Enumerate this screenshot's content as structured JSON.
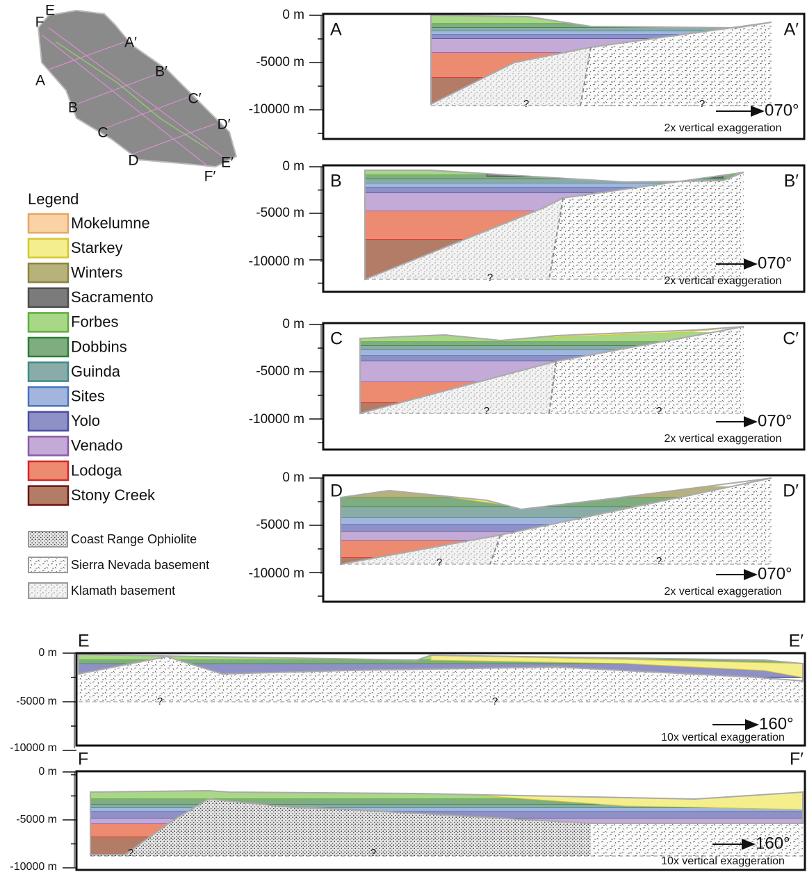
{
  "map": {
    "labels": [
      "E",
      "F",
      "A′",
      "A",
      "B′",
      "B",
      "C′",
      "C",
      "D′",
      "D",
      "E′",
      "F′"
    ]
  },
  "legend": {
    "title": "Legend",
    "items": [
      {
        "name": "Mokelumne",
        "color": "#f9d3a5",
        "edge": "#e9a466"
      },
      {
        "name": "Starkey",
        "color": "#f4ee8c",
        "edge": "#d6c630"
      },
      {
        "name": "Winters",
        "color": "#b7b27c",
        "edge": "#8a8540"
      },
      {
        "name": "Sacramento",
        "color": "#7b7b7b",
        "edge": "#4d4d4d"
      },
      {
        "name": "Forbes",
        "color": "#a8d887",
        "edge": "#5dae3a"
      },
      {
        "name": "Dobbins",
        "color": "#80ad80",
        "edge": "#2e7d3a"
      },
      {
        "name": "Guinda",
        "color": "#8aaca8",
        "edge": "#3f8a86"
      },
      {
        "name": "Sites",
        "color": "#a2b6dd",
        "edge": "#4a73c0"
      },
      {
        "name": "Yolo",
        "color": "#8f90c6",
        "edge": "#4a4fa0"
      },
      {
        "name": "Venado",
        "color": "#c4aad6",
        "edge": "#8a5aa8"
      },
      {
        "name": "Lodoga",
        "color": "#ec8b70",
        "edge": "#d8232a"
      },
      {
        "name": "Stony Creek",
        "color": "#b27c66",
        "edge": "#6e1414"
      },
      {
        "name": "Coast Range Ophiolite",
        "color": "#bbbbbb",
        "edge": "#999999"
      },
      {
        "name": "Sierra Nevada basement",
        "color": "#bbbbbb",
        "edge": "#999999"
      },
      {
        "name": "Klamath basement",
        "color": "#bbbbbb",
        "edge": "#999999"
      }
    ]
  },
  "sections": [
    {
      "start_label": "A",
      "end_label": "A′",
      "yticks": [
        "0 m",
        "-5000 m",
        "-10000 m"
      ],
      "direction": "070°",
      "exaggeration": "2x vertical exaggeration",
      "unknown": [
        "?",
        "?"
      ]
    },
    {
      "start_label": "B",
      "end_label": "B′",
      "yticks": [
        "0 m",
        "-5000 m",
        "-10000 m"
      ],
      "direction": "070°",
      "exaggeration": "2x vertical exaggeration",
      "unknown": [
        "?"
      ]
    },
    {
      "start_label": "C",
      "end_label": "C′",
      "yticks": [
        "0 m",
        "-5000 m",
        "-10000 m"
      ],
      "direction": "070°",
      "exaggeration": "2x vertical exaggeration",
      "unknown": [
        "?",
        "?"
      ]
    },
    {
      "start_label": "D",
      "end_label": "D′",
      "yticks": [
        "0 m",
        "-5000 m",
        "-10000 m"
      ],
      "direction": "070°",
      "exaggeration": "2x vertical exaggeration",
      "unknown": [
        "?",
        "?"
      ]
    },
    {
      "start_label": "E",
      "end_label": "E′",
      "yticks": [
        "0 m",
        "-5000 m",
        "-10000 m"
      ],
      "direction": "160°",
      "exaggeration": "10x vertical exaggeration",
      "unknown": [
        "?",
        "?"
      ]
    },
    {
      "start_label": "F",
      "end_label": "F′",
      "yticks": [
        "0 m",
        "-5000 m",
        "-10000 m"
      ],
      "direction": "160°",
      "exaggeration": "10x vertical exaggeration",
      "unknown": [
        "?",
        "?"
      ]
    }
  ]
}
